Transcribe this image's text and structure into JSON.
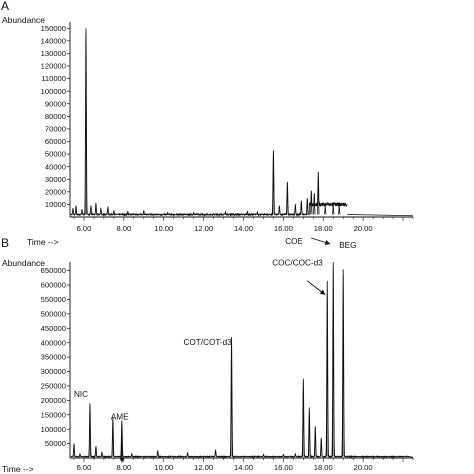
{
  "chart_data": [
    {
      "panel": "A",
      "type": "line",
      "ylabel": "Abundance",
      "xlabel": "Time -->",
      "ylim": [
        0,
        155000
      ],
      "xlim": [
        5.3,
        22.5
      ],
      "yticks": [
        10000,
        20000,
        30000,
        40000,
        50000,
        60000,
        70000,
        80000,
        90000,
        100000,
        110000,
        120000,
        130000,
        140000,
        150000
      ],
      "ytick_labels": [
        "10000",
        "20000",
        "30000",
        "40000",
        "50000",
        "60000",
        "70000",
        "80000",
        "90000",
        "100000",
        "110000",
        "120000",
        "130000",
        "140000",
        "150000"
      ],
      "xticks": [
        6,
        8,
        10,
        12,
        14,
        16,
        18,
        20
      ],
      "xtick_labels": [
        "6.00",
        "8.00",
        "10.00",
        "12.00",
        "14.00",
        "16.00",
        "18.00",
        "20.00"
      ],
      "baseline": 2000,
      "trace_end": 19.2,
      "peaks": [
        {
          "x": 5.45,
          "y": 7000
        },
        {
          "x": 5.6,
          "y": 9000
        },
        {
          "x": 5.9,
          "y": 6000
        },
        {
          "x": 6.1,
          "y": 150000
        },
        {
          "x": 6.35,
          "y": 9000
        },
        {
          "x": 6.6,
          "y": 11000
        },
        {
          "x": 6.85,
          "y": 7000
        },
        {
          "x": 7.2,
          "y": 8000
        },
        {
          "x": 7.5,
          "y": 5000
        },
        {
          "x": 8.2,
          "y": 4500
        },
        {
          "x": 9.0,
          "y": 5000
        },
        {
          "x": 10.2,
          "y": 3500
        },
        {
          "x": 11.5,
          "y": 3500
        },
        {
          "x": 13.1,
          "y": 4000
        },
        {
          "x": 14.2,
          "y": 4500
        },
        {
          "x": 14.7,
          "y": 4000
        },
        {
          "x": 15.5,
          "y": 53000
        },
        {
          "x": 15.8,
          "y": 9000
        },
        {
          "x": 16.2,
          "y": 28000
        },
        {
          "x": 16.6,
          "y": 10000
        },
        {
          "x": 16.9,
          "y": 13000
        },
        {
          "x": 17.2,
          "y": 15000
        },
        {
          "x": 17.4,
          "y": 21000
        },
        {
          "x": 17.55,
          "y": 19000
        },
        {
          "x": 17.75,
          "y": 36000
        },
        {
          "x": 18.1,
          "y": 9000
        },
        {
          "x": 18.5,
          "y": 10000
        },
        {
          "x": 18.8,
          "y": 9500
        }
      ],
      "hump": {
        "from": 17.3,
        "to": 19.2,
        "y": 10000
      }
    },
    {
      "panel": "B",
      "type": "line",
      "ylabel": "Abundance",
      "xlabel": "Time -->",
      "ylim": [
        0,
        680000
      ],
      "xlim": [
        5.3,
        22.5
      ],
      "yticks": [
        50000,
        100000,
        150000,
        200000,
        250000,
        300000,
        350000,
        400000,
        450000,
        500000,
        550000,
        600000,
        650000
      ],
      "ytick_labels": [
        "50000",
        "100000",
        "150000",
        "200000",
        "250000",
        "300000",
        "350000",
        "400000",
        "450000",
        "500000",
        "550000",
        "600000",
        "650000"
      ],
      "xticks": [
        6,
        8,
        10,
        12,
        14,
        16,
        18,
        20
      ],
      "xtick_labels": [
        "6.00",
        "8.00",
        "10.00",
        "12.00",
        "14.00",
        "16.00",
        "18.00",
        "20.00"
      ],
      "baseline": 5000,
      "trace_end": 22.3,
      "peaks": [
        {
          "x": 5.5,
          "y": 50000
        },
        {
          "x": 5.8,
          "y": 15000
        },
        {
          "x": 6.3,
          "y": 190000
        },
        {
          "x": 6.6,
          "y": 40000
        },
        {
          "x": 6.9,
          "y": 20000
        },
        {
          "x": 7.45,
          "y": 140000
        },
        {
          "x": 7.9,
          "y": 130000
        },
        {
          "x": 8.4,
          "y": 15000
        },
        {
          "x": 9.7,
          "y": 25000
        },
        {
          "x": 11.2,
          "y": 18000
        },
        {
          "x": 12.6,
          "y": 28000
        },
        {
          "x": 13.4,
          "y": 420000
        },
        {
          "x": 15.0,
          "y": 12000
        },
        {
          "x": 16.0,
          "y": 12000
        },
        {
          "x": 16.6,
          "y": 15000
        },
        {
          "x": 17.0,
          "y": 275000
        },
        {
          "x": 17.3,
          "y": 175000
        },
        {
          "x": 17.6,
          "y": 110000
        },
        {
          "x": 17.9,
          "y": 70000
        },
        {
          "x": 18.2,
          "y": 615000
        },
        {
          "x": 18.5,
          "y": 680000
        },
        {
          "x": 19.0,
          "y": 655000
        }
      ],
      "annotations": [
        {
          "label": "NIC",
          "x": 6.3,
          "arrow": false
        },
        {
          "label": "AME",
          "x": 7.9,
          "arrow": true
        },
        {
          "label": "COT/COT-d3",
          "x": 13.4,
          "arrow": false
        },
        {
          "label": "COC/COC-d3",
          "x": 18.2,
          "arrow": true
        },
        {
          "label": "COE",
          "x": 18.5,
          "arrow": true
        },
        {
          "label": "BEG",
          "x": 19.0,
          "arrow": false
        }
      ]
    }
  ]
}
